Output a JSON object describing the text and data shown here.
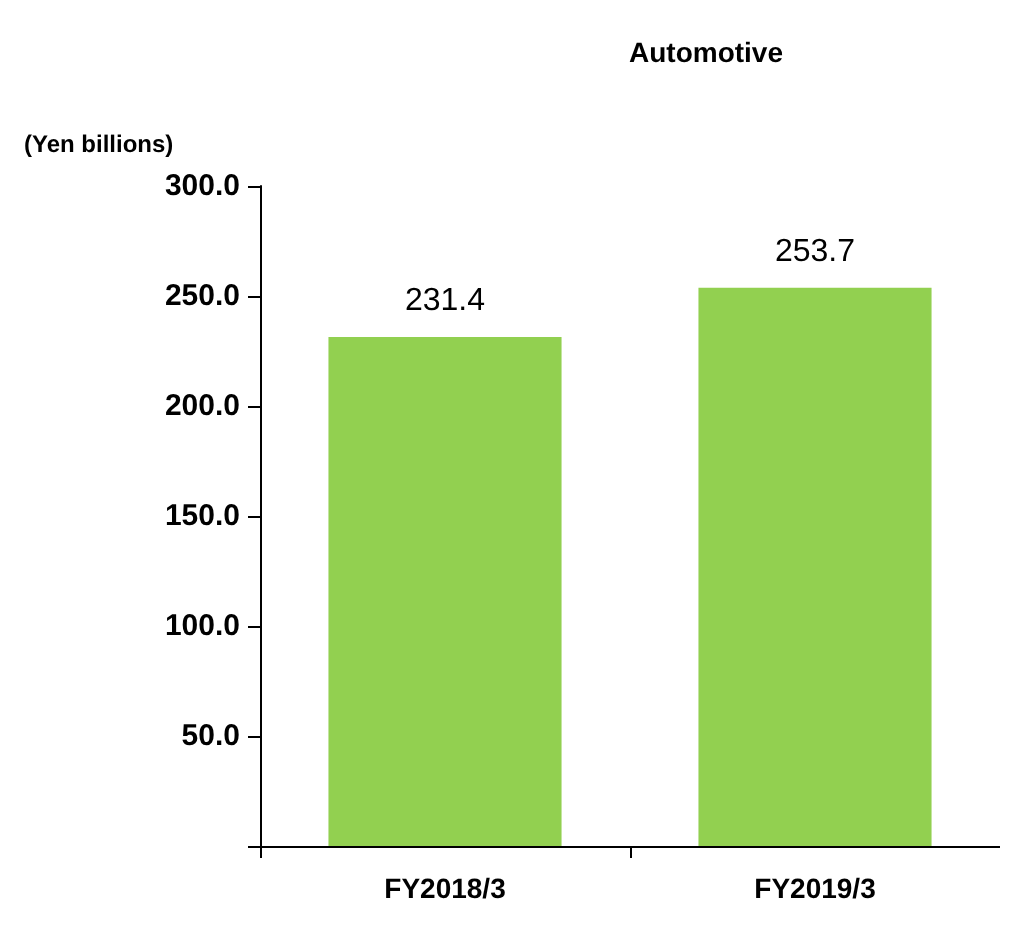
{
  "chart_data": {
    "type": "bar",
    "title": "Automotive",
    "ylabel": "(Yen billions)",
    "categories": [
      "FY2018/3",
      "FY2019/3"
    ],
    "values": [
      231.4,
      253.7
    ],
    "color": "#92d050",
    "ylim": [
      0,
      300
    ],
    "yticks": [
      {
        "value": 0,
        "label": null
      },
      {
        "value": 50,
        "label": "50.0"
      },
      {
        "value": 100,
        "label": "100.0"
      },
      {
        "value": 150,
        "label": "150.0"
      },
      {
        "value": 200,
        "label": "200.0"
      },
      {
        "value": 250,
        "label": "250.0"
      },
      {
        "value": 300,
        "label": "300.0"
      }
    ],
    "data_labels": true,
    "grid": false
  }
}
